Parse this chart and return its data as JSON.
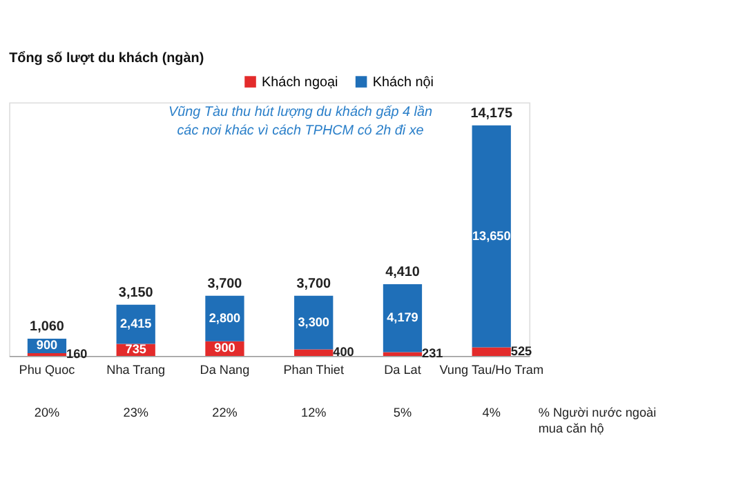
{
  "chart_data": {
    "type": "bar",
    "stacked": true,
    "title": "Tổng số lượt du khách (ngàn)",
    "categories": [
      "Phu Quoc",
      "Nha Trang",
      "Da Nang",
      "Phan Thiet",
      "Da Lat",
      "Vung Tau/Ho Tram"
    ],
    "series": [
      {
        "name": "Khách ngoại",
        "color": "#e32b2b",
        "values": [
          160,
          735,
          900,
          400,
          231,
          525
        ],
        "value_labels": [
          "160",
          "735",
          "900",
          "400",
          "231",
          "525"
        ]
      },
      {
        "name": "Khách nội",
        "color": "#1f6fb8",
        "values": [
          900,
          2415,
          2800,
          3300,
          4179,
          13650
        ],
        "value_labels": [
          "900",
          "2,415",
          "2,800",
          "3,300",
          "4,179",
          "13,650"
        ]
      }
    ],
    "totals": [
      "1,060",
      "3,150",
      "3,700",
      "3,700",
      "4,410",
      "14,175"
    ],
    "legend": "top right",
    "grid": false,
    "tick_labels": "x",
    "annotations": [
      "Vũng Tàu thu hút lượng du khách gấp 4 lần\ncác nơi khác vì cách TPHCM có 2h đi xe",
      "% Người nước ngoài\nmua căn hộ",
      "20%",
      "23%",
      "22%",
      "12%",
      "5%",
      "4%"
    ]
  }
}
